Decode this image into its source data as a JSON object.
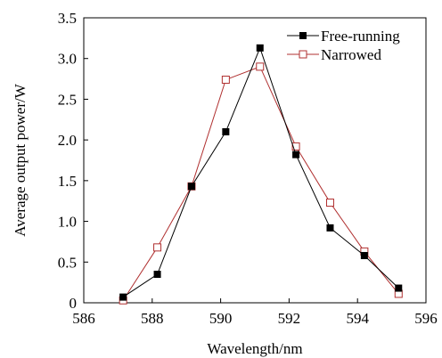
{
  "chart_data": {
    "type": "line",
    "title": "",
    "xlabel": "Wavelength/nm",
    "ylabel": "Average output power/W",
    "xlim": [
      586,
      596
    ],
    "ylim": [
      0,
      3.5
    ],
    "x_ticks": [
      586,
      588,
      590,
      592,
      594,
      596
    ],
    "y_ticks": [
      0,
      0.5,
      1.0,
      1.5,
      2.0,
      2.5,
      3.0,
      3.5
    ],
    "x_tick_labels": [
      "586",
      "588",
      "590",
      "592",
      "594",
      "596"
    ],
    "y_tick_labels": [
      "0",
      "0.5",
      "1.0",
      "1.5",
      "2.0",
      "2.5",
      "3.0",
      "3.5"
    ],
    "grid": false,
    "legend_position": "top-right",
    "series": [
      {
        "name": "Free-running",
        "color": "#000000",
        "marker": "filled-square",
        "x": [
          587.15,
          588.15,
          589.15,
          590.15,
          591.15,
          592.2,
          593.2,
          594.2,
          595.2
        ],
        "y": [
          0.07,
          0.35,
          1.43,
          2.1,
          3.13,
          1.82,
          0.92,
          0.58,
          0.18
        ]
      },
      {
        "name": "Narrowed",
        "color": "#b03030",
        "marker": "open-square",
        "x": [
          587.15,
          588.15,
          589.15,
          590.15,
          591.15,
          592.2,
          593.2,
          594.2,
          595.2
        ],
        "y": [
          0.03,
          0.68,
          1.43,
          2.74,
          2.9,
          1.92,
          1.23,
          0.63,
          0.11
        ]
      }
    ]
  }
}
